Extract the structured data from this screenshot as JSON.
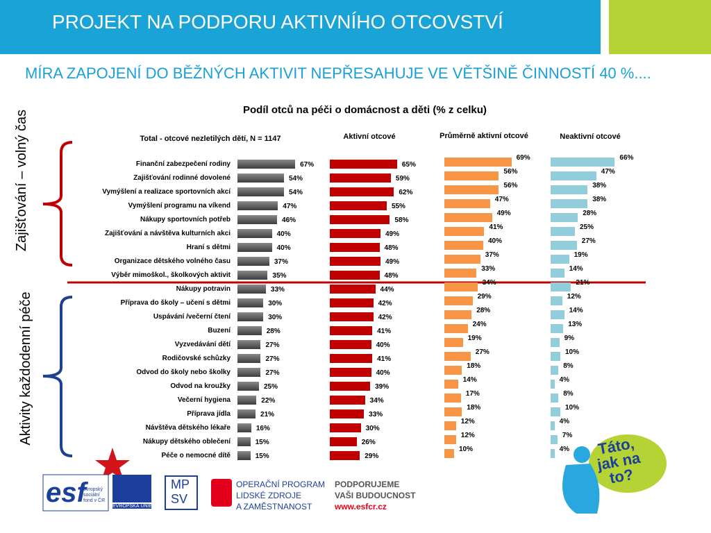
{
  "header": {
    "title": "PROJEKT NA PODPORU AKTIVNÍHO OTCOVSTVÍ",
    "subtitle": "MÍRA ZAPOJENÍ DO BĚŽNÝCH AKTIVIT NEPŘESAHUJE VE VĚTŠINĚ ČINNOSTÍ 40 %...."
  },
  "side_labels": [
    "Zajišťování – volný čas",
    "Aktivity každodenní péče"
  ],
  "chart_data": {
    "type": "bar",
    "orientation": "horizontal",
    "title": "Podíl otců na péči o domácnost a děti (% z celku)",
    "categories": [
      "Finanční zabezpečení rodiny",
      "Zajišťování rodinné dovolené",
      "Vymýšlení a realizace sportovních akcí",
      "Vymýšlení programu na víkend",
      "Nákupy sportovních potřeb",
      "Zajišťování a návštěva kulturních akci",
      "Hraní s dětmi",
      "Organizace dětského volného času",
      "Výběr mimoškol., školkových aktivit",
      "Nákupy potravin",
      "Příprava do školy – učení s dětmi",
      "Uspávání /večerní čtení",
      "Buzení",
      "Vyzvedávání dětí",
      "Rodičovské schůzky",
      "Odvod do školy nebo školky",
      "Odvod na kroužky",
      "Večerní hygiena",
      "Příprava jídla",
      "Návštěva dětského lékaře",
      "Nákupy dětského oblečení",
      "Péče o nemocné dítě"
    ],
    "series": [
      {
        "name": "Total - otcové nezletilých dětí, N = 1147",
        "color": "#5a5a5a",
        "values": [
          67,
          54,
          54,
          47,
          46,
          40,
          40,
          37,
          35,
          33,
          30,
          30,
          28,
          27,
          27,
          27,
          25,
          22,
          21,
          16,
          15,
          15
        ],
        "value_labels": [
          "67%",
          "54%",
          "54%",
          "47%",
          "46%",
          "40%",
          "40%",
          "37%",
          "35%",
          "33%",
          "30%",
          "30%",
          "28%",
          "27%",
          "27%",
          "27%",
          "25%",
          "22%",
          "21%",
          "16%",
          "15%",
          "15%"
        ]
      },
      {
        "name": "Aktivní otcové",
        "color": "#c00000",
        "values": [
          65,
          59,
          62,
          55,
          58,
          49,
          48,
          49,
          48,
          44,
          42,
          42,
          41,
          40,
          41,
          40,
          39,
          34,
          33,
          30,
          26,
          29
        ],
        "value_labels": [
          "65%",
          "59%",
          "62%",
          "55%",
          "58%",
          "49%",
          "48%",
          "49%",
          "48%",
          "44%",
          "42%",
          "42%",
          "41%",
          "40%",
          "41%",
          "40%",
          "39%",
          "34%",
          "33%",
          "30%",
          "26%",
          "29%"
        ]
      },
      {
        "name": "Průměrně aktivní otcové",
        "color": "#f79646",
        "values": [
          69,
          56,
          56,
          47,
          49,
          41,
          40,
          37,
          33,
          34,
          29,
          28,
          24,
          19,
          27,
          18,
          14,
          17,
          18,
          12,
          12,
          10
        ],
        "value_labels": [
          "69%",
          "56%",
          "56%",
          "47%",
          "49%",
          "41%",
          "40%",
          "37%",
          "33%",
          "34%",
          "29%",
          "28%",
          "24%",
          "19%",
          "27%",
          "18%",
          "14%",
          "17%",
          "18%",
          "12%",
          "12%",
          "10%"
        ]
      },
      {
        "name": "Neaktivní otcové",
        "color": "#92cddc",
        "values": [
          66,
          47,
          38,
          38,
          28,
          25,
          27,
          19,
          14,
          21,
          12,
          14,
          13,
          9,
          10,
          8,
          4,
          8,
          10,
          4,
          7,
          4
        ],
        "value_labels": [
          "66%",
          "47%",
          "38%",
          "38%",
          "28%",
          "25%",
          "27%",
          "19%",
          "14%",
          "21%",
          "12%",
          "14%",
          "13%",
          "9%",
          "10%",
          "8%",
          "4%",
          "8%",
          "10%",
          "4%",
          "7%",
          "4%"
        ]
      }
    ]
  },
  "footer": {
    "esf_lines": [
      "evropský",
      "sociální",
      "fond v ČR"
    ],
    "eu": "EVROPSKÁ UNIE",
    "mpsv": [
      "MP",
      "SV"
    ],
    "op_lines": [
      "OPERAČNÍ PROGRAM",
      "LIDSKÉ ZDROJE",
      "A ZAMĚSTNANOST"
    ],
    "support_lines": [
      "PODPORUJEME",
      "VAŠI BUDOUCNOST"
    ],
    "url": "www.esfcr.cz",
    "badge_lines": [
      "Táto,",
      "jak na",
      "to?"
    ]
  }
}
